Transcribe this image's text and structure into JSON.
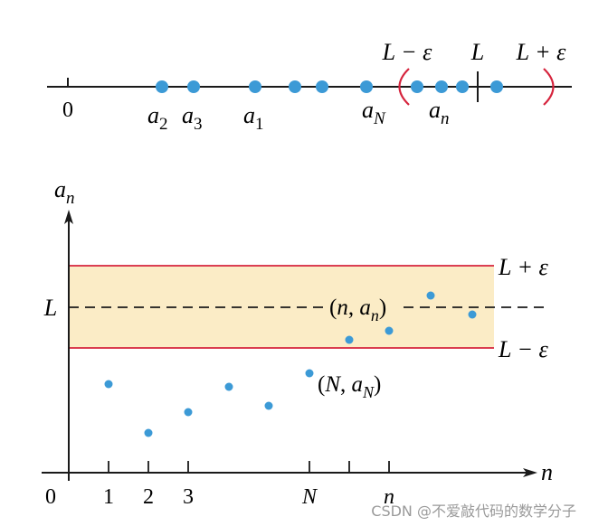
{
  "colors": {
    "axis": "#1a1a1a",
    "point": "#3c9ad6",
    "bracket": "#d6243d",
    "band_fill": "#fbecc6",
    "band_edge": "#d6243d",
    "watermark": "#9a9a9a"
  },
  "number_line": {
    "zero_label": "0",
    "labels": {
      "a2": {
        "base": "a",
        "sub": "2"
      },
      "a3": {
        "base": "a",
        "sub": "3"
      },
      "a1": {
        "base": "a",
        "sub": "1"
      },
      "aN": {
        "base": "a",
        "sub": "N"
      },
      "an": {
        "base": "a",
        "sub": "n"
      }
    },
    "interval": {
      "lower_label": "L − ε",
      "center_label": "L",
      "upper_label": "L + ε"
    }
  },
  "plot": {
    "y_axis_label": {
      "base": "a",
      "sub": "n"
    },
    "x_axis_label": "n",
    "origin_label": "0",
    "x_ticks": [
      "1",
      "2",
      "3",
      "N",
      "n"
    ],
    "L_label": "L",
    "upper_band_label": "L + ε",
    "lower_band_label": "L − ε",
    "point_label_n": {
      "open": "(n, ",
      "base": "a",
      "sub": "n",
      "close": ")"
    },
    "point_label_N": {
      "open": "(N, ",
      "base": "a",
      "sub": "N",
      "close": ")"
    }
  },
  "watermark": "CSDN @不爱敲代码的数学分子"
}
